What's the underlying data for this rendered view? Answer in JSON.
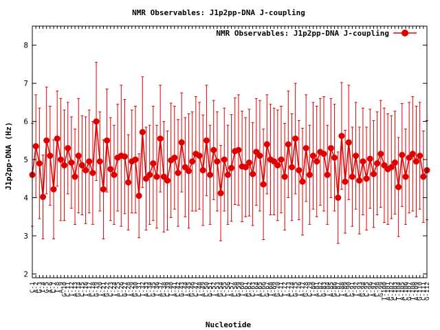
{
  "chart_data": {
    "type": "line",
    "title": "NMR Observables: J1p2pp-DNA J-coupling",
    "xlabel": "Nucleotide",
    "ylabel": "J1p2pp-DNA (Hz)",
    "ylim": [
      1.9,
      8.5
    ],
    "yticks": [
      2,
      3,
      4,
      5,
      6,
      7,
      8
    ],
    "grid": false,
    "legend_position": "top-right",
    "line_color": "#dd0000",
    "series": [
      {
        "name": "NMR Observables: J1p2pp-DNA J-coupling",
        "categories": [
          "C-1",
          "A-2",
          "G-3",
          "T-4",
          "G-5",
          "A-6",
          "C-7",
          "T-8",
          "A-9",
          "G-10",
          "C-11",
          "T-12",
          "A-13",
          "G-14",
          "C-15",
          "T-16",
          "A-17",
          "C-18",
          "G-19",
          "T-20",
          "A-21",
          "G-22",
          "C-23",
          "T-24",
          "A-25",
          "C-26",
          "G-27",
          "T-28",
          "A-29",
          "G-30",
          "C-31",
          "T-32",
          "A-33",
          "C-34",
          "G-35",
          "T-36",
          "A-37",
          "G-38",
          "C-39",
          "T-40",
          "A-41",
          "C-42",
          "G-43",
          "T-44",
          "A-45",
          "G-46",
          "C-47",
          "T-48",
          "A-49",
          "C-50",
          "G-51",
          "T-52",
          "A-53",
          "G-54",
          "C-55",
          "T-56",
          "A-57",
          "C-58",
          "G-59",
          "T-60",
          "A-61",
          "G-62",
          "C-63",
          "T-64",
          "A-65",
          "C-66",
          "G-67",
          "T-68",
          "A-69",
          "G-70",
          "C-71",
          "T-72",
          "A-73",
          "C-74",
          "G-75",
          "T-76",
          "A-77",
          "G-78",
          "C-79",
          "T-80",
          "A-81",
          "C-82",
          "G-83",
          "T-84",
          "A-85",
          "G-86",
          "C-87",
          "T-88",
          "A-89",
          "C-90",
          "G-91",
          "T-92",
          "A-93",
          "G-94",
          "C-95",
          "T-96",
          "A-97",
          "C-98",
          "G-99",
          "T-100",
          "A-101",
          "G-102",
          "C-103",
          "T-104",
          "A-105",
          "C-106",
          "G-107",
          "T-108",
          "A-109",
          "G-110",
          "C-111",
          "G-112"
        ],
        "values": [
          4.6,
          5.35,
          4.9,
          4.02,
          5.5,
          5.1,
          4.22,
          5.55,
          5.0,
          4.85,
          5.3,
          4.92,
          4.55,
          5.1,
          4.85,
          4.72,
          4.95,
          4.65,
          6.0,
          4.95,
          4.22,
          5.5,
          4.75,
          4.6,
          5.05,
          5.1,
          5.08,
          4.4,
          4.95,
          5.0,
          4.05,
          5.72,
          4.5,
          4.6,
          4.9,
          4.55,
          5.55,
          4.55,
          4.45,
          4.98,
          5.05,
          4.65,
          5.45,
          4.8,
          4.7,
          4.95,
          5.15,
          5.1,
          4.72,
          5.5,
          4.6,
          5.25,
          4.95,
          4.12,
          5.0,
          4.6,
          4.78,
          5.22,
          5.25,
          4.82,
          4.8,
          4.92,
          4.62,
          5.2,
          5.1,
          4.35,
          5.4,
          5.0,
          4.95,
          4.85,
          5.0,
          4.55,
          5.4,
          4.8,
          5.55,
          4.72,
          4.42,
          5.3,
          4.6,
          5.1,
          4.95,
          5.2,
          5.15,
          4.6,
          5.3,
          5.05,
          4.0,
          5.62,
          4.42,
          5.45,
          4.55,
          5.1,
          4.45,
          4.95,
          4.5,
          5.02,
          4.62,
          4.9,
          5.15,
          4.85,
          4.75,
          4.8,
          4.92,
          4.28,
          5.12,
          4.55,
          5.05,
          5.15,
          4.95,
          5.1,
          4.55,
          4.72
        ],
        "errors": [
          1.35,
          1.35,
          1.45,
          1.1,
          1.4,
          1.3,
          1.3,
          1.25,
          1.6,
          1.45,
          1.2,
          1.2,
          1.25,
          1.5,
          1.3,
          1.4,
          1.35,
          1.35,
          1.55,
          1.3,
          1.3,
          1.35,
          1.35,
          1.3,
          1.4,
          1.85,
          1.5,
          1.25,
          1.35,
          1.4,
          1.1,
          1.45,
          1.35,
          1.3,
          1.5,
          1.35,
          1.4,
          1.45,
          1.3,
          1.5,
          1.35,
          1.4,
          1.3,
          1.3,
          1.5,
          1.3,
          1.5,
          1.4,
          1.45,
          1.45,
          1.3,
          1.3,
          1.3,
          1.25,
          1.35,
          1.3,
          1.4,
          1.4,
          1.45,
          1.45,
          1.3,
          1.4,
          1.35,
          1.4,
          1.45,
          1.45,
          1.3,
          1.45,
          1.4,
          1.45,
          1.4,
          1.4,
          1.4,
          1.4,
          1.45,
          1.3,
          1.4,
          1.4,
          1.3,
          1.4,
          1.45,
          1.4,
          1.5,
          1.3,
          1.3,
          1.4,
          1.2,
          1.4,
          1.35,
          1.5,
          1.3,
          1.4,
          1.4,
          1.4,
          1.35,
          1.3,
          1.4,
          1.35,
          1.4,
          1.5,
          1.45,
          1.35,
          1.35,
          1.3,
          1.35,
          1.25,
          1.45,
          1.5,
          1.45,
          1.4,
          1.2,
          1.3
        ]
      }
    ]
  }
}
